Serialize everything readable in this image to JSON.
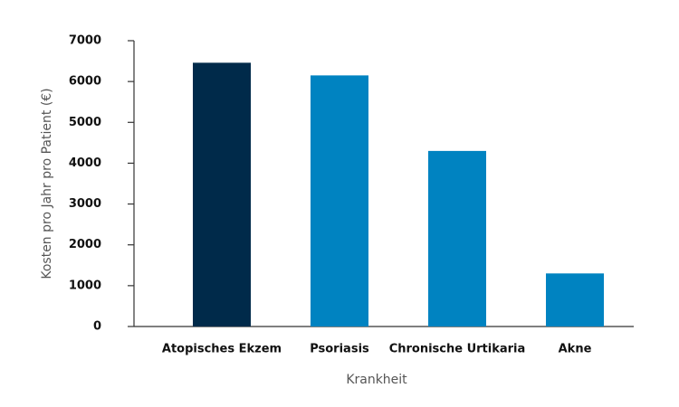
{
  "chart_data": {
    "type": "bar",
    "x_label": "Krankheit",
    "y_label": "Kosten pro Jahr pro Patient (€)",
    "categories": [
      "Atopisches Ekzem",
      "Psoriasis",
      "Chronische Urtikaria",
      "Akne"
    ],
    "values": [
      6460,
      6150,
      4300,
      1300
    ],
    "colors": [
      "#002a4a",
      "#0083c1",
      "#0083c1",
      "#0083c1"
    ],
    "ylim": [
      0,
      7000
    ],
    "yticks": [
      0,
      1000,
      2000,
      3000,
      4000,
      5000,
      6000,
      7000
    ],
    "grid": false
  }
}
